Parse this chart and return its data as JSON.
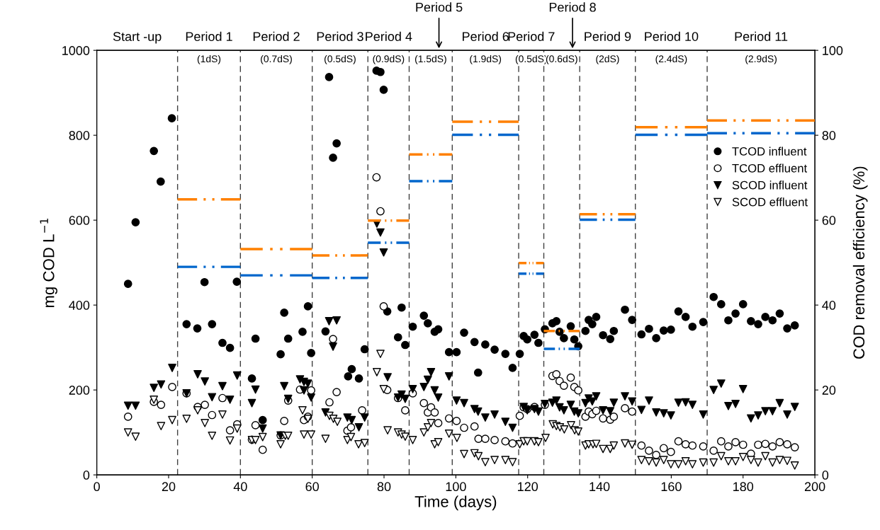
{
  "chart_data": {
    "type": "scatter",
    "xlabel": "Time (days)",
    "ylabel": "mg COD L$^{−1}$",
    "y2label": "COD removal efficiency (%)",
    "xlim": [
      0,
      200
    ],
    "xticks": [
      0,
      20,
      40,
      60,
      80,
      100,
      120,
      140,
      160,
      180,
      200
    ],
    "ylim": [
      0,
      1000
    ],
    "yticks": [
      0,
      200,
      400,
      600,
      800,
      1000
    ],
    "y2lim": [
      0,
      100
    ],
    "y2ticks": [
      0,
      20,
      40,
      60,
      80,
      100
    ],
    "grid": false,
    "legend": "right",
    "series": [
      {
        "name": "TCOD influent",
        "marker": "circle",
        "color": "#000000",
        "x": [
          8.7,
          10.8,
          15.9,
          17.8,
          20.9,
          25,
          28,
          30,
          32.1,
          35,
          37.1,
          39,
          43.2,
          44.2,
          46.2,
          51.2,
          52.2,
          53.3,
          57.3,
          58.8,
          59.7,
          63.7,
          64.7,
          65.8,
          66.8,
          70,
          71,
          73,
          74.6,
          77.9,
          79,
          79.9,
          80.9,
          83.9,
          84.9,
          85.9,
          88,
          91.1,
          92.2,
          94.1,
          95.1,
          98.1,
          100.2,
          102.3,
          105.2,
          106.2,
          108.2,
          110.8,
          113.8,
          115.8,
          117.8,
          118.9,
          119.9,
          121.9,
          123,
          124.8,
          126.9,
          128,
          128.9,
          130.1,
          132,
          133,
          134.1,
          136.1,
          137,
          138,
          139.1,
          141,
          143,
          144,
          147.1,
          149.1,
          151.7,
          153.8,
          155.8,
          157.9,
          159.9,
          162,
          164,
          165.9,
          168.9,
          171.8,
          173.9,
          175.9,
          177.9,
          180,
          182.2,
          184.2,
          186.2,
          188.2,
          190.2,
          192.3,
          194.4
        ],
        "values": [
          450,
          595,
          763,
          691,
          840,
          355,
          345,
          454,
          355,
          311,
          299,
          455,
          227,
          321,
          129,
          284,
          382,
          321,
          337,
          397,
          287,
          338,
          937,
          747,
          781,
          232,
          249,
          227,
          296,
          952,
          949,
          907,
          385,
          324,
          394,
          306,
          349,
          375,
          357,
          337,
          343,
          289,
          289,
          335,
          313,
          241,
          307,
          295,
          285,
          252,
          285,
          327,
          319,
          330,
          311,
          343,
          357,
          362,
          337,
          322,
          350,
          319,
          303,
          339,
          365,
          355,
          372,
          329,
          320,
          339,
          389,
          365,
          331,
          344,
          322,
          340,
          342,
          385,
          372,
          349,
          360,
          419,
          402,
          364,
          380,
          402,
          362,
          355,
          372,
          364,
          380,
          345,
          352
        ]
      },
      {
        "name": "TCOD effluent",
        "marker": "circle",
        "color": "#ffffff",
        "x": [
          8.7,
          15.9,
          17.9,
          21,
          25,
          28.1,
          30.1,
          32.1,
          35,
          37.1,
          39.1,
          43.2,
          44.2,
          46.2,
          51.2,
          52.2,
          53.3,
          56.6,
          57.7,
          58.8,
          59.7,
          64.8,
          65.8,
          66.8,
          69.8,
          70.8,
          73.9,
          77.9,
          79,
          79.9,
          80.9,
          83.9,
          85.9,
          88,
          91.1,
          92.2,
          93.1,
          94.1,
          95.1,
          98.1,
          100.2,
          102.3,
          105.2,
          106.3,
          108.2,
          110.8,
          113.8,
          115.8,
          117.8,
          118.9,
          119.9,
          121.9,
          124.8,
          126.9,
          128,
          128.9,
          130.1,
          132,
          133,
          134.1,
          136.1,
          137,
          138,
          139.1,
          141,
          143,
          144,
          147.1,
          149.1,
          151.7,
          153.8,
          155.8,
          157.9,
          159.9,
          162,
          164,
          165.9,
          168.9,
          171.8,
          173.9,
          175.9,
          177.9,
          180,
          182.2,
          184.2,
          186.2,
          188.2,
          190.2,
          192.3,
          194.4
        ],
        "values": [
          137,
          172,
          165,
          207,
          192,
          160,
          165,
          141,
          181,
          105,
          119,
          83,
          117,
          59,
          93,
          127,
          175,
          201,
          129,
          137,
          199,
          171,
          320,
          195,
          104,
          112,
          152,
          701,
          621,
          397,
          200,
          181,
          152,
          192,
          169,
          147,
          159,
          147,
          122,
          133,
          127,
          111,
          114,
          85,
          85,
          82,
          79,
          74,
          139,
          159,
          155,
          160,
          165,
          233,
          237,
          221,
          210,
          229,
          207,
          199,
          137,
          149,
          143,
          151,
          133,
          130,
          137,
          157,
          149,
          69,
          57,
          47,
          63,
          54,
          79,
          72,
          69,
          67,
          57,
          79,
          67,
          77,
          71,
          50,
          71,
          73,
          67,
          77,
          72,
          65
        ]
      },
      {
        "name": "SCOD influent",
        "marker": "triangle",
        "color": "#000000",
        "x": [
          8.7,
          10.8,
          15.9,
          17.9,
          21,
          25,
          28.1,
          30.1,
          32.1,
          35,
          37.1,
          39.1,
          43.2,
          44.2,
          46.2,
          51.2,
          52.2,
          53.3,
          56.6,
          57.7,
          57.7,
          58.8,
          59.7,
          63.7,
          64.7,
          65.8,
          66.8,
          69.8,
          71,
          73,
          74.6,
          78,
          79,
          79.9,
          81,
          83.9,
          84.9,
          85.9,
          88,
          91.1,
          92.2,
          93.1,
          94.1,
          95.1,
          98.1,
          100.2,
          102.3,
          105.2,
          106.2,
          108.2,
          110.8,
          113.8,
          115.8,
          118.9,
          119.9,
          121.9,
          123,
          124.8,
          126.9,
          128,
          128.9,
          130.1,
          132,
          133,
          134.1,
          136.1,
          137,
          138,
          139.1,
          141,
          143,
          144,
          147.1,
          149.1,
          151.7,
          153.8,
          155.8,
          157.9,
          159.9,
          162,
          164,
          165.9,
          168.9,
          171.8,
          173.9,
          175.9,
          177.9,
          180,
          182.2,
          184.2,
          186.2,
          188.2,
          190.2,
          192.3,
          194.4
        ],
        "values": [
          163,
          163,
          205,
          213,
          252,
          192,
          237,
          220,
          183,
          209,
          177,
          234,
          169,
          201,
          109,
          93,
          209,
          179,
          225,
          219,
          199,
          215,
          182,
          147,
          362,
          302,
          364,
          135,
          129,
          112,
          135,
          592,
          571,
          524,
          230,
          182,
          189,
          179,
          202,
          207,
          224,
          242,
          199,
          182,
          232,
          175,
          169,
          155,
          149,
          135,
          142,
          125,
          111,
          160,
          152,
          155,
          149,
          167,
          170,
          175,
          159,
          152,
          165,
          149,
          145,
          169,
          180,
          173,
          185,
          152,
          150,
          170,
          185,
          173,
          153,
          175,
          147,
          145,
          140,
          170,
          171,
          165,
          142,
          200,
          215,
          162,
          167,
          202,
          133,
          140,
          150,
          150,
          169,
          142,
          160
        ]
      },
      {
        "name": "SCOD effluent",
        "marker": "triangle",
        "color": "#ffffff",
        "x": [
          8.7,
          10.8,
          15.9,
          17.9,
          21,
          25,
          28.1,
          30.1,
          32.1,
          35,
          37.1,
          39.1,
          43.2,
          44.2,
          46.2,
          51.2,
          52.5,
          53.3,
          57.3,
          57.7,
          58.8,
          59.7,
          63.7,
          64.8,
          65.9,
          67,
          69.8,
          70.8,
          72.9,
          74.6,
          78,
          79,
          79.9,
          81,
          83.9,
          84.9,
          85.9,
          88,
          91.1,
          92.2,
          93.1,
          94.1,
          95.1,
          98.1,
          100.3,
          102.3,
          105.2,
          106.3,
          108.2,
          110.8,
          113.8,
          115.8,
          117.8,
          118.9,
          119.9,
          121.9,
          123,
          125,
          127,
          128,
          129,
          130.2,
          132.1,
          133.1,
          134.1,
          136.1,
          137,
          138.2,
          139.1,
          141,
          143,
          144,
          147.1,
          149.1,
          151.7,
          153.8,
          155.8,
          157.9,
          159.9,
          162,
          164,
          165.9,
          168.9,
          171.8,
          173.9,
          175.9,
          177.9,
          180,
          182.2,
          184.2,
          186.2,
          188.2,
          190.2,
          192.3,
          194.4
        ],
        "values": [
          100,
          90,
          177,
          115,
          129,
          132,
          152,
          122,
          92,
          142,
          81,
          109,
          82,
          82,
          89,
          72,
          92,
          92,
          152,
          95,
          132,
          95,
          85,
          139,
          132,
          125,
          82,
          89,
          72,
          75,
          242,
          285,
          202,
          105,
          100,
          95,
          90,
          82,
          100,
          112,
          122,
          72,
          77,
          97,
          87,
          49,
          51,
          44,
          30,
          35,
          35,
          30,
          72,
          79,
          79,
          79,
          77,
          87,
          119,
          115,
          112,
          107,
          117,
          105,
          102,
          69,
          72,
          72,
          73,
          61,
          61,
          69,
          74,
          71,
          35,
          32,
          29,
          35,
          25,
          25,
          32,
          25,
          29,
          29,
          44,
          32,
          32,
          42,
          35,
          29,
          44,
          29,
          35,
          33,
          22
        ]
      },
      {
        "type": "line",
        "axis": "y2",
        "line_style": "dashed",
        "marker": "none",
        "color": "#ff8000",
        "x": [
          22.5,
          40
        ],
        "values": [
          64.9,
          64.9
        ]
      },
      {
        "type": "line",
        "axis": "y2",
        "line_style": "dashed",
        "marker": "none",
        "color": "#ff8000",
        "x": [
          40,
          60
        ],
        "values": [
          53.2,
          53.2
        ]
      },
      {
        "type": "line",
        "axis": "y2",
        "line_style": "dashed",
        "marker": "none",
        "color": "#ff8000",
        "x": [
          60,
          75.5
        ],
        "values": [
          51.7,
          51.7
        ]
      },
      {
        "type": "line",
        "axis": "y2",
        "line_style": "dashed",
        "marker": "none",
        "color": "#ff8000",
        "x": [
          75.5,
          87
        ],
        "values": [
          59.9,
          59.9
        ]
      },
      {
        "type": "line",
        "axis": "y2",
        "line_style": "dashed",
        "marker": "none",
        "color": "#ff8000",
        "x": [
          87,
          99
        ],
        "values": [
          75.5,
          75.5
        ]
      },
      {
        "type": "line",
        "axis": "y2",
        "line_style": "dashed",
        "marker": "none",
        "color": "#ff8000",
        "x": [
          99,
          117.5
        ],
        "values": [
          83.2,
          83.2
        ]
      },
      {
        "type": "line",
        "axis": "y2",
        "line_style": "dashed",
        "marker": "none",
        "color": "#ff8000",
        "x": [
          117.5,
          124.5
        ],
        "values": [
          49.9,
          49.9
        ]
      },
      {
        "type": "line",
        "axis": "y2",
        "line_style": "dashed",
        "marker": "none",
        "color": "#ff8000",
        "x": [
          124.5,
          134.5
        ],
        "values": [
          33.9,
          33.9
        ]
      },
      {
        "type": "line",
        "axis": "y2",
        "line_style": "dashed",
        "marker": "none",
        "color": "#ff8000",
        "x": [
          134.5,
          150
        ],
        "values": [
          61.4,
          61.4
        ]
      },
      {
        "type": "line",
        "axis": "y2",
        "line_style": "dashed",
        "marker": "none",
        "color": "#ff8000",
        "x": [
          150,
          170
        ],
        "values": [
          81.9,
          81.9
        ]
      },
      {
        "type": "line",
        "axis": "y2",
        "line_style": "dashed",
        "marker": "none",
        "color": "#ff8000",
        "x": [
          170,
          200
        ],
        "values": [
          83.5,
          83.5
        ]
      },
      {
        "type": "line",
        "axis": "y2",
        "line_style": "dashed",
        "marker": "none",
        "color": "#0066cc",
        "x": [
          22.5,
          40
        ],
        "values": [
          49.0,
          49.0
        ]
      },
      {
        "type": "line",
        "axis": "y2",
        "line_style": "dashed",
        "marker": "none",
        "color": "#0066cc",
        "x": [
          40,
          60
        ],
        "values": [
          47.0,
          47.0
        ]
      },
      {
        "type": "line",
        "axis": "y2",
        "line_style": "dashed",
        "marker": "none",
        "color": "#0066cc",
        "x": [
          60,
          75.5
        ],
        "values": [
          46.4,
          46.4
        ]
      },
      {
        "type": "line",
        "axis": "y2",
        "line_style": "dashed",
        "marker": "none",
        "color": "#0066cc",
        "x": [
          75.5,
          87
        ],
        "values": [
          54.7,
          54.7
        ]
      },
      {
        "type": "line",
        "axis": "y2",
        "line_style": "dashed",
        "marker": "none",
        "color": "#0066cc",
        "x": [
          87,
          99
        ],
        "values": [
          69.2,
          69.2
        ]
      },
      {
        "type": "line",
        "axis": "y2",
        "line_style": "dashed",
        "marker": "none",
        "color": "#0066cc",
        "x": [
          99,
          117.5
        ],
        "values": [
          80.1,
          80.1
        ]
      },
      {
        "type": "line",
        "axis": "y2",
        "line_style": "dashed",
        "marker": "none",
        "color": "#0066cc",
        "x": [
          117.5,
          124.5
        ],
        "values": [
          47.4,
          47.4
        ]
      },
      {
        "type": "line",
        "axis": "y2",
        "line_style": "dashed",
        "marker": "none",
        "color": "#0066cc",
        "x": [
          124.5,
          134.5
        ],
        "values": [
          29.7,
          29.7
        ]
      },
      {
        "type": "line",
        "axis": "y2",
        "line_style": "dashed",
        "marker": "none",
        "color": "#0066cc",
        "x": [
          134.5,
          150
        ],
        "values": [
          60.1,
          60.1
        ]
      },
      {
        "type": "line",
        "axis": "y2",
        "line_style": "dashed",
        "marker": "none",
        "color": "#0066cc",
        "x": [
          150,
          170
        ],
        "values": [
          80.1,
          80.1
        ]
      },
      {
        "type": "line",
        "axis": "y2",
        "line_style": "dashed",
        "marker": "none",
        "color": "#0066cc",
        "x": [
          170,
          200
        ],
        "values": [
          80.5,
          80.5
        ]
      }
    ],
    "ref_lines": [
      {
        "axis": "x",
        "value": 22.5,
        "color": "#404040",
        "line_style": "dashed"
      },
      {
        "axis": "x",
        "value": 40,
        "color": "#404040",
        "line_style": "dashed"
      },
      {
        "axis": "x",
        "value": 60,
        "color": "#404040",
        "line_style": "dashed"
      },
      {
        "axis": "x",
        "value": 75.5,
        "color": "#404040",
        "line_style": "dashed"
      },
      {
        "axis": "x",
        "value": 87,
        "color": "#404040",
        "line_style": "dashed"
      },
      {
        "axis": "x",
        "value": 99,
        "color": "#404040",
        "line_style": "dashed"
      },
      {
        "axis": "x",
        "value": 117.5,
        "color": "#404040",
        "line_style": "dashed"
      },
      {
        "axis": "x",
        "value": 124.5,
        "color": "#404040",
        "line_style": "dashed"
      },
      {
        "axis": "x",
        "value": 134.5,
        "color": "#404040",
        "line_style": "dashed"
      },
      {
        "axis": "x",
        "value": 150,
        "color": "#404040",
        "line_style": "dashed"
      },
      {
        "axis": "x",
        "value": 170,
        "color": "#404040",
        "line_style": "dashed"
      }
    ],
    "annotations": [
      "Start -up",
      "Period 1",
      "Period 2",
      "Period 3",
      "Period 4",
      "Period 5",
      "Period 6",
      "Period 7",
      "Period 8",
      "Period 9",
      "Period 10",
      "Period 11",
      "(1dS)",
      "(0.7dS)",
      "(0.5dS)",
      "(0.9dS)",
      "(1.5dS)",
      "(1.9dS)",
      "(0.5dS)",
      "(0.6dS)",
      "(2dS)",
      "(2.4dS)",
      "(2.9dS)"
    ]
  }
}
